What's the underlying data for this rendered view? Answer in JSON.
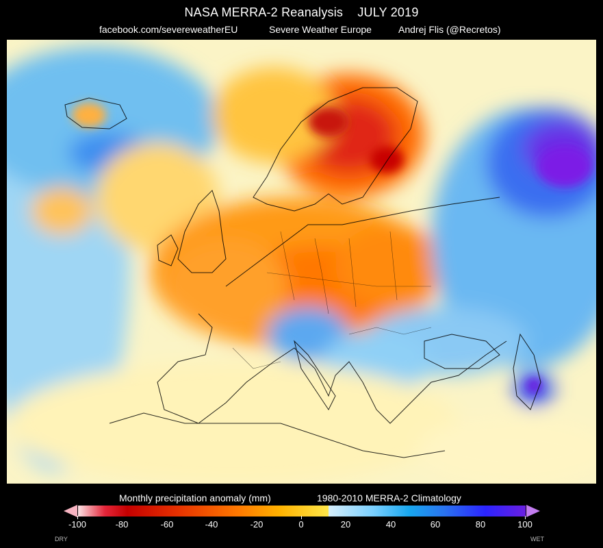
{
  "header": {
    "title_left": "NASA MERRA-2 Reanalysis",
    "title_right": "JULY 2019",
    "credit_1": "facebook.com/severeweatherEU",
    "credit_2": "Severe Weather Europe",
    "credit_3": "Andrej Flis (@Recretos)"
  },
  "legend": {
    "label": "Monthly precipitation anomaly (mm)",
    "climatology": "1980-2010 MERRA-2  Climatology",
    "ticks": [
      "-100",
      "-80",
      "-60",
      "-40",
      "-20",
      "0",
      "20",
      "40",
      "60",
      "80",
      "100"
    ],
    "dry_label": "DRY",
    "wet_label": "WET",
    "colors": {
      "dry_extreme": "#c40000",
      "dry_moderate": "#ff7a00",
      "dry_light": "#ffe74a",
      "neutral": "#ffffff",
      "wet_light": "#7ad0ff",
      "wet_moderate": "#2a72ef",
      "wet_extreme": "#6a1fe0"
    }
  }
}
